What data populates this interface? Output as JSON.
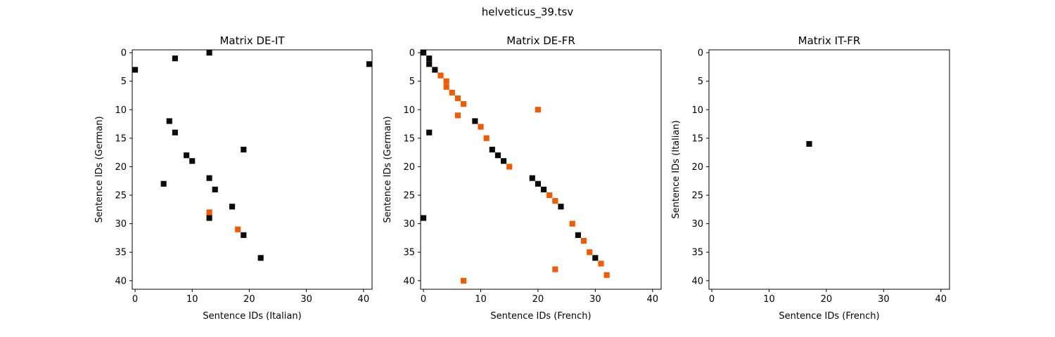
{
  "suptitle": "helveticus_39.tsv",
  "colors": {
    "black": "#0a0a0a",
    "orange": "#f25a00",
    "frame": "#000000",
    "background": "#ffffff"
  },
  "chart_data": [
    {
      "type": "heatmap",
      "title": "Matrix DE-IT",
      "xlabel": "Sentence IDs (Italian)",
      "ylabel": "Sentence IDs (German)",
      "xlim": [
        -0.5,
        41.5
      ],
      "ylim": [
        41.5,
        -0.5
      ],
      "xticks": [
        0,
        10,
        20,
        30,
        40
      ],
      "yticks": [
        0,
        5,
        10,
        15,
        20,
        25,
        30,
        35,
        40
      ],
      "grid": false,
      "cells": [
        {
          "x": 13,
          "y": 0,
          "color": "black"
        },
        {
          "x": 7,
          "y": 1,
          "color": "black"
        },
        {
          "x": 41,
          "y": 2,
          "color": "black"
        },
        {
          "x": 0,
          "y": 3,
          "color": "black"
        },
        {
          "x": 6,
          "y": 12,
          "color": "black"
        },
        {
          "x": 7,
          "y": 14,
          "color": "black"
        },
        {
          "x": 19,
          "y": 17,
          "color": "black"
        },
        {
          "x": 9,
          "y": 18,
          "color": "black"
        },
        {
          "x": 10,
          "y": 19,
          "color": "black"
        },
        {
          "x": 13,
          "y": 22,
          "color": "black"
        },
        {
          "x": 5,
          "y": 23,
          "color": "black"
        },
        {
          "x": 14,
          "y": 24,
          "color": "black"
        },
        {
          "x": 17,
          "y": 27,
          "color": "black"
        },
        {
          "x": 13,
          "y": 28,
          "color": "orange"
        },
        {
          "x": 13,
          "y": 29,
          "color": "black"
        },
        {
          "x": 18,
          "y": 31,
          "color": "orange"
        },
        {
          "x": 19,
          "y": 32,
          "color": "black"
        },
        {
          "x": 22,
          "y": 36,
          "color": "black"
        }
      ]
    },
    {
      "type": "heatmap",
      "title": "Matrix DE-FR",
      "xlabel": "Sentence IDs (French)",
      "ylabel": "Sentence IDs (German)",
      "xlim": [
        -0.5,
        41.5
      ],
      "ylim": [
        41.5,
        -0.5
      ],
      "xticks": [
        0,
        10,
        20,
        30,
        40
      ],
      "yticks": [
        0,
        5,
        10,
        15,
        20,
        25,
        30,
        35,
        40
      ],
      "grid": false,
      "cells": [
        {
          "x": 0,
          "y": 0,
          "color": "black"
        },
        {
          "x": 1,
          "y": 1,
          "color": "black"
        },
        {
          "x": 1,
          "y": 2,
          "color": "black"
        },
        {
          "x": 2,
          "y": 3,
          "color": "black"
        },
        {
          "x": 3,
          "y": 4,
          "color": "orange"
        },
        {
          "x": 4,
          "y": 5,
          "color": "orange"
        },
        {
          "x": 4,
          "y": 6,
          "color": "orange"
        },
        {
          "x": 5,
          "y": 7,
          "color": "orange"
        },
        {
          "x": 6,
          "y": 8,
          "color": "orange"
        },
        {
          "x": 7,
          "y": 9,
          "color": "orange"
        },
        {
          "x": 20,
          "y": 10,
          "color": "orange"
        },
        {
          "x": 6,
          "y": 11,
          "color": "orange"
        },
        {
          "x": 9,
          "y": 12,
          "color": "black"
        },
        {
          "x": 10,
          "y": 13,
          "color": "orange"
        },
        {
          "x": 1,
          "y": 14,
          "color": "black"
        },
        {
          "x": 11,
          "y": 15,
          "color": "orange"
        },
        {
          "x": 12,
          "y": 17,
          "color": "black"
        },
        {
          "x": 13,
          "y": 18,
          "color": "black"
        },
        {
          "x": 14,
          "y": 19,
          "color": "black"
        },
        {
          "x": 15,
          "y": 20,
          "color": "orange"
        },
        {
          "x": 19,
          "y": 22,
          "color": "black"
        },
        {
          "x": 20,
          "y": 23,
          "color": "black"
        },
        {
          "x": 21,
          "y": 24,
          "color": "black"
        },
        {
          "x": 22,
          "y": 25,
          "color": "orange"
        },
        {
          "x": 23,
          "y": 26,
          "color": "orange"
        },
        {
          "x": 24,
          "y": 27,
          "color": "black"
        },
        {
          "x": 0,
          "y": 29,
          "color": "black"
        },
        {
          "x": 26,
          "y": 30,
          "color": "orange"
        },
        {
          "x": 27,
          "y": 32,
          "color": "black"
        },
        {
          "x": 28,
          "y": 33,
          "color": "orange"
        },
        {
          "x": 29,
          "y": 35,
          "color": "orange"
        },
        {
          "x": 30,
          "y": 36,
          "color": "black"
        },
        {
          "x": 31,
          "y": 37,
          "color": "orange"
        },
        {
          "x": 23,
          "y": 38,
          "color": "orange"
        },
        {
          "x": 32,
          "y": 39,
          "color": "orange"
        },
        {
          "x": 7,
          "y": 40,
          "color": "orange"
        }
      ]
    },
    {
      "type": "heatmap",
      "title": "Matrix IT-FR",
      "xlabel": "Sentence IDs (French)",
      "ylabel": "Sentence IDs (Italian)",
      "xlim": [
        -0.5,
        41.5
      ],
      "ylim": [
        41.5,
        -0.5
      ],
      "xticks": [
        0,
        10,
        20,
        30,
        40
      ],
      "yticks": [
        0,
        5,
        10,
        15,
        20,
        25,
        30,
        35,
        40
      ],
      "grid": false,
      "cells": [
        {
          "x": 17,
          "y": 16,
          "color": "black"
        }
      ]
    }
  ]
}
